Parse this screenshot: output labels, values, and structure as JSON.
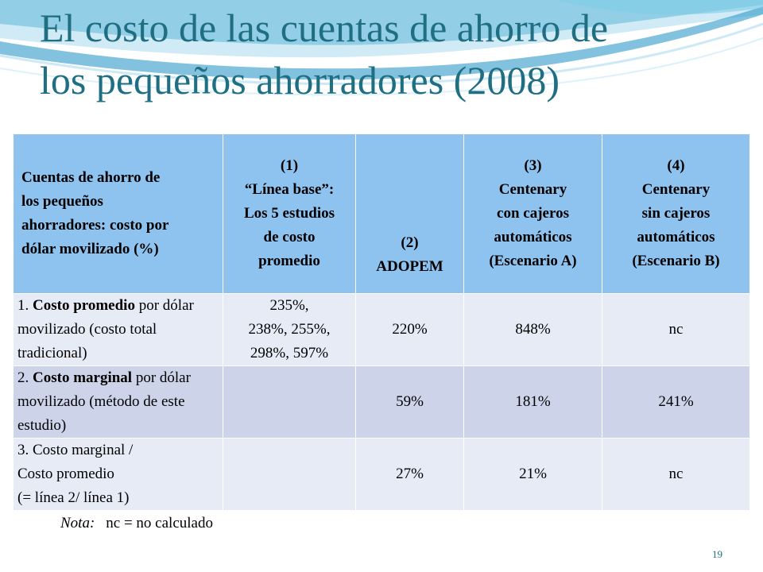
{
  "slide": {
    "title_lines": [
      "El costo de las cuentas de ahorro de",
      "los pequeños ahorradores (2008)"
    ],
    "page_number": "19"
  },
  "table": {
    "header": {
      "row_label_lines": [
        "Cuentas de ahorro de",
        "los pequeños",
        "ahorradores: costo por",
        "dólar movilizado (%)"
      ],
      "columns": [
        {
          "lines": [
            "(1)",
            "“Línea base”:",
            "Los 5 estudios",
            "de costo",
            "promedio"
          ]
        },
        {
          "lines": [
            "(2)",
            "ADOPEM"
          ]
        },
        {
          "lines": [
            "(3)",
            "Centenary",
            "con cajeros",
            "automáticos",
            "(Escenario A)"
          ]
        },
        {
          "lines": [
            "(4)",
            "Centenary",
            "sin cajeros",
            "automáticos",
            "(Escenario B)"
          ]
        }
      ]
    },
    "rows": [
      {
        "label_prefix": "1. ",
        "label_bold": "Costo promedio",
        "label_rest": " por dólar movilizado (costo total tradicional)",
        "col1_lines": [
          "235%,",
          "238%, 255%,",
          "298%, 597%"
        ],
        "col2": "220%",
        "col3": "848%",
        "col4": "nc"
      },
      {
        "label_prefix": "2. ",
        "label_bold": "Costo marginal",
        "label_rest": " por dólar movilizado (método de este estudio)",
        "col1_lines": [],
        "col2": "59%",
        "col3": "181%",
        "col4": "241%"
      },
      {
        "label_lines": [
          "3. Costo marginal /",
          "Costo promedio",
          "(= línea 2/ línea 1)"
        ],
        "col1_lines": [],
        "col2": "27%",
        "col3": "21%",
        "col4": "nc"
      }
    ]
  },
  "note": {
    "label": "Nota:",
    "text": "nc = no calculado"
  },
  "colors": {
    "title": "#1f6e82",
    "header_bg": "#8fc3ef",
    "row_light_bg": "#e7ebf5",
    "row_dark_bg": "#cdd4ea"
  }
}
